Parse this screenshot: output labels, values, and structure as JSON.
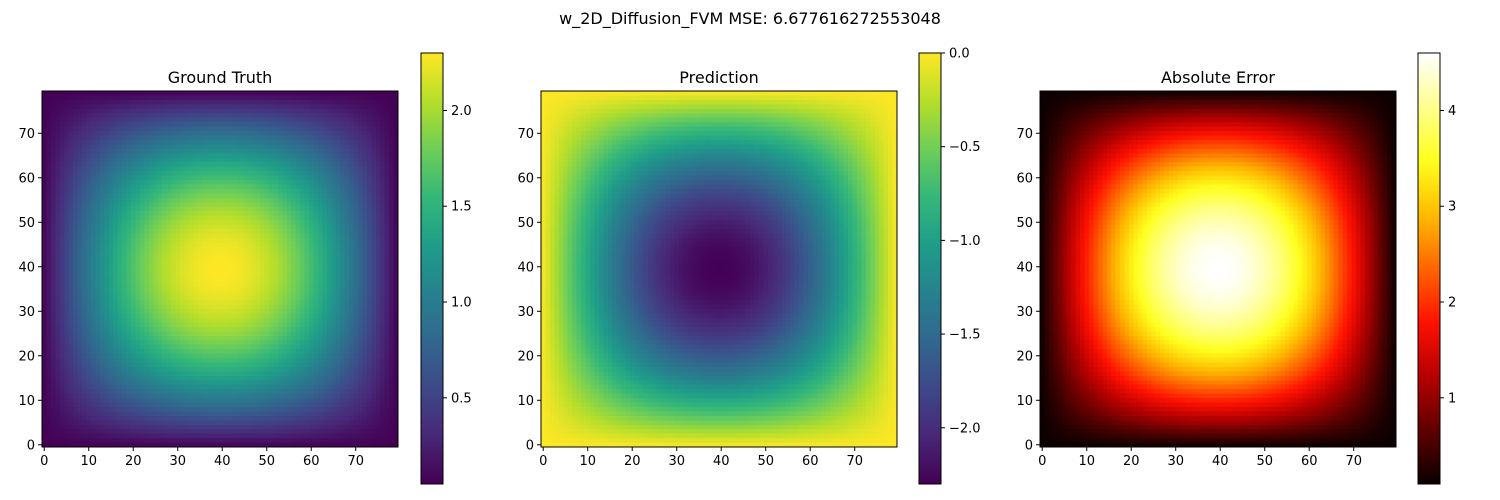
{
  "suptitle": "w_2D_Diffusion_FVM MSE: 6.677616272553048",
  "colormaps": {
    "viridis": [
      "#440154",
      "#482878",
      "#3e4989",
      "#31688e",
      "#26828e",
      "#1f9e89",
      "#35b779",
      "#6ece58",
      "#b5de2b",
      "#fde725"
    ],
    "hot": [
      "#0b0000",
      "#600000",
      "#b70000",
      "#ff1100",
      "#ff6600",
      "#ffbb00",
      "#ffff1d",
      "#ffff8e",
      "#ffffff"
    ]
  },
  "chart_data": [
    {
      "type": "heatmap",
      "title": "Ground Truth",
      "grid_size": 80,
      "field": "sin(pi*x/80)*sin(pi*y/80)",
      "value_min": 0.05,
      "value_max": 2.3,
      "colormap": "viridis",
      "xlim": [
        0,
        79
      ],
      "ylim": [
        0,
        79
      ],
      "x_ticks": [
        0,
        10,
        20,
        30,
        40,
        50,
        60,
        70
      ],
      "y_ticks": [
        0,
        10,
        20,
        30,
        40,
        50,
        60,
        70
      ],
      "colorbar": {
        "min": 0.05,
        "max": 2.3,
        "ticks": [
          0.5,
          1.0,
          1.5,
          2.0
        ],
        "tick_labels": [
          "0.5",
          "1.0",
          "1.5",
          "2.0"
        ]
      }
    },
    {
      "type": "heatmap",
      "title": "Prediction",
      "grid_size": 80,
      "field": "-sin(pi*x/80)*sin(pi*y/80)",
      "value_min": -2.3,
      "value_max": 0.0,
      "colormap": "viridis",
      "xlim": [
        0,
        79
      ],
      "ylim": [
        0,
        79
      ],
      "x_ticks": [
        0,
        10,
        20,
        30,
        40,
        50,
        60,
        70
      ],
      "y_ticks": [
        0,
        10,
        20,
        30,
        40,
        50,
        60,
        70
      ],
      "colorbar": {
        "min": -2.3,
        "max": 0.0,
        "ticks": [
          -2.0,
          -1.5,
          -1.0,
          -0.5,
          0.0
        ],
        "tick_labels": [
          "−2.0",
          "−1.5",
          "−1.0",
          "−0.5",
          "0.0"
        ]
      }
    },
    {
      "type": "heatmap",
      "title": "Absolute Error",
      "grid_size": 80,
      "field": "2*sin(pi*x/80)*sin(pi*y/80)",
      "value_min": 0.1,
      "value_max": 4.6,
      "colormap": "hot",
      "xlim": [
        0,
        79
      ],
      "ylim": [
        0,
        79
      ],
      "x_ticks": [
        0,
        10,
        20,
        30,
        40,
        50,
        60,
        70
      ],
      "y_ticks": [
        0,
        10,
        20,
        30,
        40,
        50,
        60,
        70
      ],
      "colorbar": {
        "min": 0.1,
        "max": 4.6,
        "ticks": [
          1,
          2,
          3,
          4
        ],
        "tick_labels": [
          "1",
          "2",
          "3",
          "4"
        ]
      }
    }
  ]
}
